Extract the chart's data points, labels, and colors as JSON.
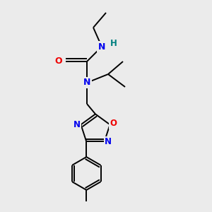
{
  "bg_color": "#ebebeb",
  "atom_colors": {
    "N": "#0000ee",
    "O": "#ee0000",
    "H": "#008080",
    "C": "#000000"
  },
  "bond_color": "#000000",
  "bond_width": 1.4
}
